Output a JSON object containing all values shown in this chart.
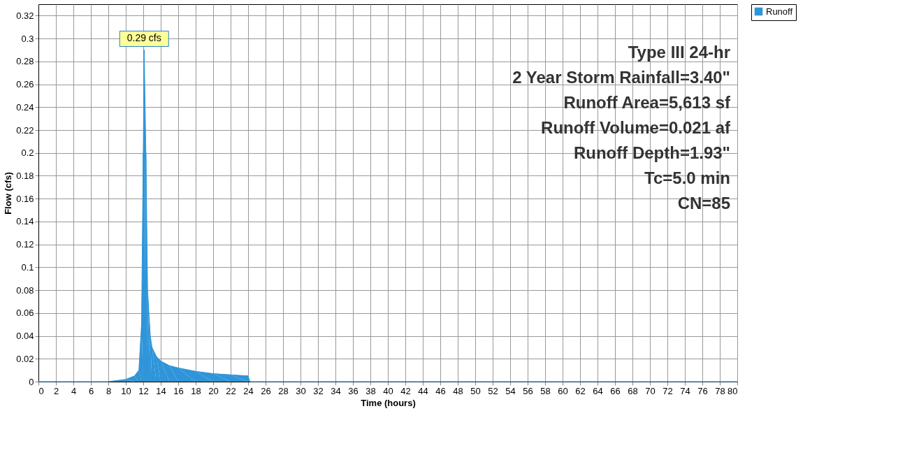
{
  "chart_data": {
    "type": "area",
    "xlabel": "Time  (hours)",
    "ylabel": "Flow  (cfs)",
    "x": [
      0,
      8,
      10,
      11,
      11.5,
      11.8,
      12.0,
      12.1,
      12.3,
      12.5,
      12.8,
      13,
      13.5,
      14,
      15,
      16,
      18,
      20,
      22,
      24,
      24.2,
      80
    ],
    "series": [
      {
        "name": "Runoff",
        "color": "#2f95d8",
        "values": [
          0,
          0,
          0.002,
          0.005,
          0.01,
          0.05,
          0.2,
          0.29,
          0.2,
          0.08,
          0.04,
          0.03,
          0.022,
          0.018,
          0.014,
          0.012,
          0.009,
          0.007,
          0.006,
          0.005,
          0,
          0
        ]
      }
    ],
    "xlim": [
      0,
      80
    ],
    "ylim": [
      0,
      0.33
    ],
    "xticks": [
      0,
      2,
      4,
      6,
      8,
      10,
      12,
      14,
      16,
      18,
      20,
      22,
      24,
      26,
      28,
      30,
      32,
      34,
      36,
      38,
      40,
      42,
      44,
      46,
      48,
      50,
      52,
      54,
      56,
      58,
      60,
      62,
      64,
      66,
      68,
      70,
      72,
      74,
      76,
      78,
      80
    ],
    "yticks": [
      0,
      0.02,
      0.04,
      0.06,
      0.08,
      0.1,
      0.12,
      0.14,
      0.16,
      0.18,
      0.2,
      0.22,
      0.24,
      0.26,
      0.28,
      0.3,
      0.32
    ],
    "grid": true,
    "legend": "top right",
    "annotations": [
      {
        "text": "0.29 cfs",
        "x": 12.1,
        "y": 0.29
      },
      "Type III 24-hr",
      "2 Year Storm Rainfall=3.40\"",
      "Runoff Area=5,613 sf",
      "Runoff Volume=0.021 af",
      "Runoff Depth=1.93\"",
      "Tc=5.0 min",
      "CN=85"
    ]
  }
}
